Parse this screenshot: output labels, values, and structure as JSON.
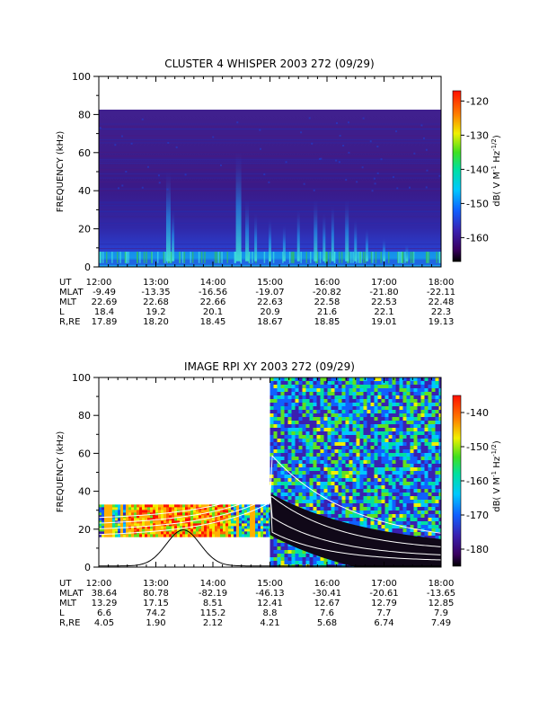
{
  "chart_data": [
    {
      "type": "heatmap",
      "title": "CLUSTER 4 WHISPER 2003 272 (09/29)",
      "ylabel": "FREQUENCY (kHz)",
      "ylim": [
        0,
        100
      ],
      "yticks": [
        "0",
        "20",
        "40",
        "60",
        "80",
        "100"
      ],
      "xlim": [
        "12:00",
        "18:00"
      ],
      "colorbar": {
        "label": "dB( V M",
        "label_sup1": "-1",
        "label_mid": " Hz",
        "label_sup2": "-1/2",
        "label_end": ")",
        "range": [
          -167,
          -117
        ],
        "ticks": [
          "-120",
          "-130",
          "-140",
          "-150",
          "-160"
        ]
      },
      "ephemeris": {
        "row_labels": [
          "UT",
          "MLAT",
          "MLT",
          "L",
          "R,RE"
        ],
        "columns": [
          [
            "12:00",
            "-9.49",
            "22.69",
            "18.4",
            "17.89"
          ],
          [
            "13:00",
            "-13.35",
            "22.68",
            "19.2",
            "18.20"
          ],
          [
            "14:00",
            "-16.56",
            "22.66",
            "20.1",
            "18.45"
          ],
          [
            "15:00",
            "-19.07",
            "22.63",
            "20.9",
            "18.67"
          ],
          [
            "16:00",
            "-20.82",
            "22.58",
            "21.6",
            "18.85"
          ],
          [
            "17:00",
            "-21.80",
            "22.53",
            "22.1",
            "19.01"
          ],
          [
            "18:00",
            "-22.11",
            "22.48",
            "22.3",
            "19.13"
          ]
        ]
      },
      "data_top_khz": 80
    },
    {
      "type": "heatmap",
      "title": "IMAGE RPI XY 2003 272 (09/29)",
      "ylabel": "FREQUENCY (kHz)",
      "ylim": [
        0,
        100
      ],
      "yticks": [
        "0",
        "20",
        "40",
        "60",
        "80",
        "100"
      ],
      "xlim": [
        "12:00",
        "18:00"
      ],
      "colorbar": {
        "label": "dB( V M",
        "label_sup1": "-1",
        "label_mid": " Hz",
        "label_sup2": "-1/2",
        "label_end": ")",
        "range": [
          -185,
          -135
        ],
        "ticks": [
          "-140",
          "-150",
          "-160",
          "-170",
          "-180"
        ]
      },
      "ephemeris": {
        "row_labels": [
          "UT",
          "MLAT",
          "MLT",
          "L",
          "R,RE"
        ],
        "columns": [
          [
            "12:00",
            "38.64",
            "13.29",
            "6.6",
            "4.05"
          ],
          [
            "13:00",
            "80.78",
            "17.15",
            "74.2",
            "1.90"
          ],
          [
            "14:00",
            "-82.19",
            "8.51",
            "115.2",
            "2.12"
          ],
          [
            "15:00",
            "-46.13",
            "12.41",
            "8.8",
            "4.21"
          ],
          [
            "16:00",
            "-30.41",
            "12.67",
            "7.6",
            "5.68"
          ],
          [
            "17:00",
            "-20.61",
            "12.79",
            "7.7",
            "6.74"
          ],
          [
            "18:00",
            "-13.65",
            "12.85",
            "7.9",
            "7.49"
          ]
        ]
      },
      "segments": [
        {
          "t_start": "12:00",
          "t_end": "15:00",
          "f_min_khz": 16,
          "f_max_khz": 33
        },
        {
          "t_start": "15:00",
          "t_end": "18:00",
          "f_min_khz": 0,
          "f_max_khz": 100
        }
      ]
    }
  ]
}
